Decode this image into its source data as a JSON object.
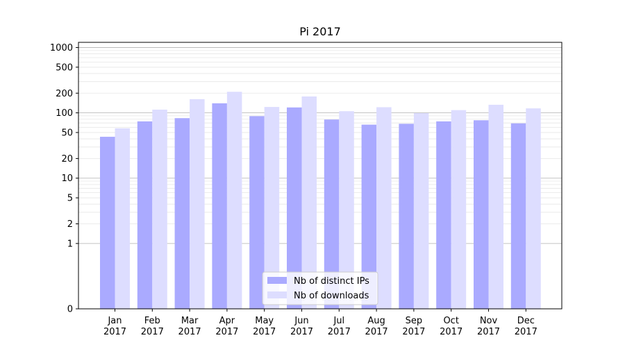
{
  "chart_data": {
    "type": "bar",
    "title": "Pi 2017",
    "xlabel": "",
    "ylabel": "",
    "yscale": "symlog",
    "ylim": [
      0,
      1200
    ],
    "yticks": [
      {
        "value": 0,
        "label": "0"
      },
      {
        "value": 1,
        "label": "1"
      },
      {
        "value": 2,
        "label": "2"
      },
      {
        "value": 5,
        "label": "5"
      },
      {
        "value": 10,
        "label": "10"
      },
      {
        "value": 20,
        "label": "20"
      },
      {
        "value": 50,
        "label": "50"
      },
      {
        "value": 100,
        "label": "100"
      },
      {
        "value": 200,
        "label": "200"
      },
      {
        "value": 500,
        "label": "500"
      },
      {
        "value": 1000,
        "label": "1000"
      }
    ],
    "categories": [
      [
        "Jan",
        "2017"
      ],
      [
        "Feb",
        "2017"
      ],
      [
        "Mar",
        "2017"
      ],
      [
        "Apr",
        "2017"
      ],
      [
        "May",
        "2017"
      ],
      [
        "Jun",
        "2017"
      ],
      [
        "Jul",
        "2017"
      ],
      [
        "Aug",
        "2017"
      ],
      [
        "Sep",
        "2017"
      ],
      [
        "Oct",
        "2017"
      ],
      [
        "Nov",
        "2017"
      ],
      [
        "Dec",
        "2017"
      ]
    ],
    "series": [
      {
        "name": "Nb of distinct IPs",
        "color": "#aaaaff",
        "values": [
          43,
          74,
          83,
          140,
          89,
          121,
          79,
          66,
          68,
          74,
          77,
          69
        ]
      },
      {
        "name": "Nb of downloads",
        "color": "#ddddff",
        "values": [
          58,
          112,
          162,
          210,
          123,
          178,
          106,
          122,
          99,
          110,
          133,
          117
        ]
      }
    ],
    "grid": true,
    "legend_position": "lower-center"
  }
}
